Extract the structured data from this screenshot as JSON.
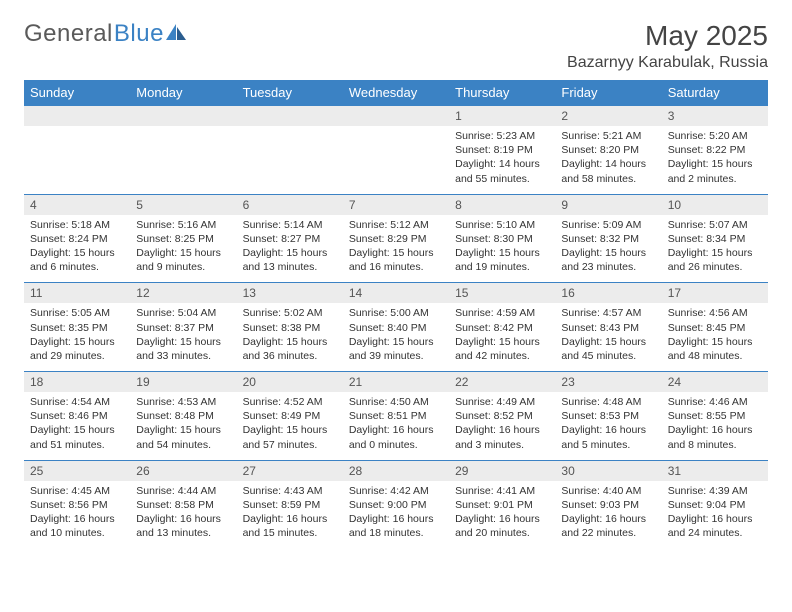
{
  "brand": {
    "part1": "General",
    "part2": "Blue"
  },
  "title": "May 2025",
  "location": "Bazarnyy Karabulak, Russia",
  "colors": {
    "header_bg": "#3b82c4",
    "header_text": "#ffffff",
    "daynum_bg": "#ececec",
    "row_border": "#3b82c4",
    "page_bg": "#ffffff",
    "text": "#333333"
  },
  "weekdays": [
    "Sunday",
    "Monday",
    "Tuesday",
    "Wednesday",
    "Thursday",
    "Friday",
    "Saturday"
  ],
  "weeks": [
    [
      {
        "n": "",
        "sr": "",
        "ss": "",
        "dl": ""
      },
      {
        "n": "",
        "sr": "",
        "ss": "",
        "dl": ""
      },
      {
        "n": "",
        "sr": "",
        "ss": "",
        "dl": ""
      },
      {
        "n": "",
        "sr": "",
        "ss": "",
        "dl": ""
      },
      {
        "n": "1",
        "sr": "Sunrise: 5:23 AM",
        "ss": "Sunset: 8:19 PM",
        "dl": "Daylight: 14 hours and 55 minutes."
      },
      {
        "n": "2",
        "sr": "Sunrise: 5:21 AM",
        "ss": "Sunset: 8:20 PM",
        "dl": "Daylight: 14 hours and 58 minutes."
      },
      {
        "n": "3",
        "sr": "Sunrise: 5:20 AM",
        "ss": "Sunset: 8:22 PM",
        "dl": "Daylight: 15 hours and 2 minutes."
      }
    ],
    [
      {
        "n": "4",
        "sr": "Sunrise: 5:18 AM",
        "ss": "Sunset: 8:24 PM",
        "dl": "Daylight: 15 hours and 6 minutes."
      },
      {
        "n": "5",
        "sr": "Sunrise: 5:16 AM",
        "ss": "Sunset: 8:25 PM",
        "dl": "Daylight: 15 hours and 9 minutes."
      },
      {
        "n": "6",
        "sr": "Sunrise: 5:14 AM",
        "ss": "Sunset: 8:27 PM",
        "dl": "Daylight: 15 hours and 13 minutes."
      },
      {
        "n": "7",
        "sr": "Sunrise: 5:12 AM",
        "ss": "Sunset: 8:29 PM",
        "dl": "Daylight: 15 hours and 16 minutes."
      },
      {
        "n": "8",
        "sr": "Sunrise: 5:10 AM",
        "ss": "Sunset: 8:30 PM",
        "dl": "Daylight: 15 hours and 19 minutes."
      },
      {
        "n": "9",
        "sr": "Sunrise: 5:09 AM",
        "ss": "Sunset: 8:32 PM",
        "dl": "Daylight: 15 hours and 23 minutes."
      },
      {
        "n": "10",
        "sr": "Sunrise: 5:07 AM",
        "ss": "Sunset: 8:34 PM",
        "dl": "Daylight: 15 hours and 26 minutes."
      }
    ],
    [
      {
        "n": "11",
        "sr": "Sunrise: 5:05 AM",
        "ss": "Sunset: 8:35 PM",
        "dl": "Daylight: 15 hours and 29 minutes."
      },
      {
        "n": "12",
        "sr": "Sunrise: 5:04 AM",
        "ss": "Sunset: 8:37 PM",
        "dl": "Daylight: 15 hours and 33 minutes."
      },
      {
        "n": "13",
        "sr": "Sunrise: 5:02 AM",
        "ss": "Sunset: 8:38 PM",
        "dl": "Daylight: 15 hours and 36 minutes."
      },
      {
        "n": "14",
        "sr": "Sunrise: 5:00 AM",
        "ss": "Sunset: 8:40 PM",
        "dl": "Daylight: 15 hours and 39 minutes."
      },
      {
        "n": "15",
        "sr": "Sunrise: 4:59 AM",
        "ss": "Sunset: 8:42 PM",
        "dl": "Daylight: 15 hours and 42 minutes."
      },
      {
        "n": "16",
        "sr": "Sunrise: 4:57 AM",
        "ss": "Sunset: 8:43 PM",
        "dl": "Daylight: 15 hours and 45 minutes."
      },
      {
        "n": "17",
        "sr": "Sunrise: 4:56 AM",
        "ss": "Sunset: 8:45 PM",
        "dl": "Daylight: 15 hours and 48 minutes."
      }
    ],
    [
      {
        "n": "18",
        "sr": "Sunrise: 4:54 AM",
        "ss": "Sunset: 8:46 PM",
        "dl": "Daylight: 15 hours and 51 minutes."
      },
      {
        "n": "19",
        "sr": "Sunrise: 4:53 AM",
        "ss": "Sunset: 8:48 PM",
        "dl": "Daylight: 15 hours and 54 minutes."
      },
      {
        "n": "20",
        "sr": "Sunrise: 4:52 AM",
        "ss": "Sunset: 8:49 PM",
        "dl": "Daylight: 15 hours and 57 minutes."
      },
      {
        "n": "21",
        "sr": "Sunrise: 4:50 AM",
        "ss": "Sunset: 8:51 PM",
        "dl": "Daylight: 16 hours and 0 minutes."
      },
      {
        "n": "22",
        "sr": "Sunrise: 4:49 AM",
        "ss": "Sunset: 8:52 PM",
        "dl": "Daylight: 16 hours and 3 minutes."
      },
      {
        "n": "23",
        "sr": "Sunrise: 4:48 AM",
        "ss": "Sunset: 8:53 PM",
        "dl": "Daylight: 16 hours and 5 minutes."
      },
      {
        "n": "24",
        "sr": "Sunrise: 4:46 AM",
        "ss": "Sunset: 8:55 PM",
        "dl": "Daylight: 16 hours and 8 minutes."
      }
    ],
    [
      {
        "n": "25",
        "sr": "Sunrise: 4:45 AM",
        "ss": "Sunset: 8:56 PM",
        "dl": "Daylight: 16 hours and 10 minutes."
      },
      {
        "n": "26",
        "sr": "Sunrise: 4:44 AM",
        "ss": "Sunset: 8:58 PM",
        "dl": "Daylight: 16 hours and 13 minutes."
      },
      {
        "n": "27",
        "sr": "Sunrise: 4:43 AM",
        "ss": "Sunset: 8:59 PM",
        "dl": "Daylight: 16 hours and 15 minutes."
      },
      {
        "n": "28",
        "sr": "Sunrise: 4:42 AM",
        "ss": "Sunset: 9:00 PM",
        "dl": "Daylight: 16 hours and 18 minutes."
      },
      {
        "n": "29",
        "sr": "Sunrise: 4:41 AM",
        "ss": "Sunset: 9:01 PM",
        "dl": "Daylight: 16 hours and 20 minutes."
      },
      {
        "n": "30",
        "sr": "Sunrise: 4:40 AM",
        "ss": "Sunset: 9:03 PM",
        "dl": "Daylight: 16 hours and 22 minutes."
      },
      {
        "n": "31",
        "sr": "Sunrise: 4:39 AM",
        "ss": "Sunset: 9:04 PM",
        "dl": "Daylight: 16 hours and 24 minutes."
      }
    ]
  ]
}
